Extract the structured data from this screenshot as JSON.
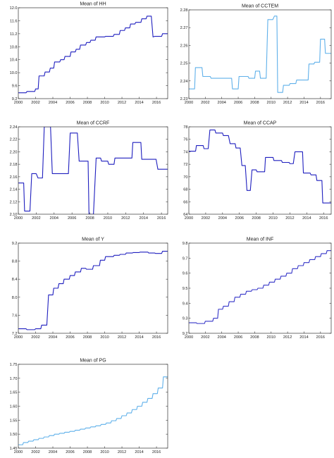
{
  "chart_data": [
    {
      "type": "line",
      "title": "Mean of HH",
      "color": "#1f1fbf",
      "ylim": [
        9.2,
        12.0
      ],
      "xlim": [
        2000,
        2017.3
      ],
      "yticks": [
        "9.2",
        "9.6",
        "10.0",
        "10.4",
        "10.8",
        "11.2",
        "11.6",
        "12.0"
      ],
      "xticks": [
        "2000",
        "2002",
        "2004",
        "2006",
        "2008",
        "2010",
        "2012",
        "2014",
        "2016"
      ],
      "x": [
        2000.0,
        2000.9,
        2001.0,
        2001.9,
        2002.0,
        2002.3,
        2002.4,
        2003.0,
        2003.1,
        2003.6,
        2003.7,
        2004.1,
        2004.2,
        2004.8,
        2004.9,
        2005.3,
        2005.4,
        2006.0,
        2006.1,
        2006.6,
        2006.7,
        2007.1,
        2007.2,
        2007.8,
        2007.9,
        2008.3,
        2008.4,
        2008.9,
        2009.0,
        2010.0,
        2010.1,
        2011.0,
        2011.1,
        2011.7,
        2011.8,
        2012.3,
        2012.4,
        2012.9,
        2013.0,
        2013.5,
        2013.6,
        2014.2,
        2014.3,
        2014.8,
        2014.9,
        2015.4,
        2015.6,
        2015.8,
        2016.6,
        2016.7,
        2017.3
      ],
      "y": [
        9.38,
        9.38,
        9.42,
        9.42,
        9.5,
        9.5,
        9.9,
        9.9,
        10.02,
        10.02,
        10.14,
        10.14,
        10.33,
        10.33,
        10.4,
        10.4,
        10.5,
        10.5,
        10.64,
        10.64,
        10.72,
        10.72,
        10.85,
        10.85,
        10.93,
        10.93,
        11.0,
        11.0,
        11.1,
        11.1,
        11.12,
        11.12,
        11.18,
        11.18,
        11.3,
        11.3,
        11.38,
        11.38,
        11.5,
        11.5,
        11.55,
        11.55,
        11.66,
        11.66,
        11.74,
        11.74,
        11.1,
        11.12,
        11.12,
        11.2,
        11.2
      ]
    },
    {
      "type": "line",
      "title": "Mean of CCTEM",
      "color": "#5fb0ea",
      "ylim": [
        2.23,
        2.28
      ],
      "xlim": [
        2000,
        2017.3
      ],
      "yticks": [
        "2.23",
        "2.24",
        "2.25",
        "2.26",
        "2.27",
        "2.28"
      ],
      "xticks": [
        "2000",
        "2002",
        "2004",
        "2006",
        "2008",
        "2010",
        "2012",
        "2014",
        "2016"
      ],
      "x": [
        2000.0,
        2000.7,
        2000.8,
        2001.6,
        2001.7,
        2002.6,
        2002.7,
        2005.2,
        2005.3,
        2006.0,
        2006.1,
        2007.2,
        2007.3,
        2008.0,
        2008.1,
        2008.6,
        2008.7,
        2009.4,
        2009.6,
        2010.2,
        2010.4,
        2010.7,
        2010.8,
        2011.4,
        2011.5,
        2012.2,
        2012.3,
        2013.0,
        2013.1,
        2014.5,
        2014.6,
        2015.2,
        2015.3,
        2015.9,
        2016.0,
        2016.5,
        2016.6,
        2017.3
      ],
      "y": [
        2.2355,
        2.2355,
        2.2475,
        2.2475,
        2.2425,
        2.2425,
        2.2415,
        2.2415,
        2.2355,
        2.2355,
        2.2425,
        2.2425,
        2.2415,
        2.2415,
        2.2455,
        2.2455,
        2.2415,
        2.2415,
        2.2745,
        2.2745,
        2.2765,
        2.2765,
        2.2335,
        2.2335,
        2.2375,
        2.2375,
        2.2385,
        2.2385,
        2.2405,
        2.2405,
        2.2495,
        2.2495,
        2.2505,
        2.2505,
        2.2635,
        2.2635,
        2.2555,
        2.2555
      ]
    },
    {
      "type": "line",
      "title": "Mean of CCRF",
      "color": "#1f1fbf",
      "ylim": [
        2.1,
        2.24
      ],
      "xlim": [
        2000,
        2016.7
      ],
      "yticks": [
        "2.10",
        "2.12",
        "2.14",
        "2.16",
        "2.18",
        "2.20",
        "2.22",
        "2.24"
      ],
      "xticks": [
        "2000",
        "2002",
        "2004",
        "2006",
        "2008",
        "2010",
        "2012",
        "2014",
        "2016"
      ],
      "x": [
        2000.0,
        2000.6,
        2000.7,
        2001.3,
        2001.5,
        2002.0,
        2002.2,
        2002.7,
        2002.9,
        2003.6,
        2003.8,
        2005.6,
        2005.8,
        2006.6,
        2006.8,
        2007.8,
        2007.9,
        2008.4,
        2008.7,
        2009.2,
        2009.3,
        2010.0,
        2010.1,
        2010.7,
        2010.8,
        2012.7,
        2012.8,
        2013.7,
        2013.8,
        2015.4,
        2015.6,
        2016.7
      ],
      "y": [
        2.15,
        2.15,
        2.105,
        2.105,
        2.165,
        2.165,
        2.158,
        2.158,
        2.24,
        2.24,
        2.165,
        2.165,
        2.23,
        2.23,
        2.185,
        2.185,
        2.1,
        2.1,
        2.19,
        2.19,
        2.185,
        2.185,
        2.18,
        2.18,
        2.19,
        2.19,
        2.215,
        2.215,
        2.188,
        2.188,
        2.172,
        2.172
      ]
    },
    {
      "type": "line",
      "title": "Mean of CCAP",
      "color": "#1f1fbf",
      "ylim": [
        64,
        78
      ],
      "xlim": [
        2000,
        2016.9
      ],
      "yticks": [
        "64",
        "66",
        "68",
        "70",
        "72",
        "74",
        "76",
        "78"
      ],
      "xticks": [
        "2000",
        "2002",
        "2004",
        "2006",
        "2008",
        "2010",
        "2012",
        "2014",
        "2016"
      ],
      "x": [
        2000.0,
        2000.8,
        2000.9,
        2001.7,
        2001.8,
        2002.3,
        2002.5,
        2003.1,
        2003.2,
        2004.0,
        2004.1,
        2004.7,
        2004.9,
        2005.5,
        2005.6,
        2006.1,
        2006.3,
        2006.7,
        2006.9,
        2007.3,
        2007.5,
        2008.0,
        2008.1,
        2009.0,
        2009.1,
        2010.0,
        2010.1,
        2011.0,
        2011.1,
        2011.9,
        2012.0,
        2012.4,
        2012.6,
        2013.5,
        2013.6,
        2014.4,
        2014.5,
        2015.1,
        2015.2,
        2015.8,
        2015.9,
        2016.9
      ],
      "y": [
        74.1,
        74.1,
        75.0,
        75.0,
        74.5,
        74.5,
        77.5,
        77.5,
        77.0,
        77.0,
        76.6,
        76.6,
        75.3,
        75.3,
        74.6,
        74.6,
        71.8,
        71.8,
        67.8,
        67.8,
        71.1,
        71.1,
        70.8,
        70.8,
        73.1,
        73.1,
        72.6,
        72.6,
        72.3,
        72.3,
        72.1,
        72.1,
        74.0,
        74.0,
        70.6,
        70.6,
        70.3,
        70.3,
        69.4,
        69.4,
        65.8,
        65.8
      ]
    },
    {
      "type": "line",
      "title": "Mean of Y",
      "color": "#1f1fbf",
      "ylim": [
        7.2,
        9.2
      ],
      "xlim": [
        2000,
        2017.3
      ],
      "yticks": [
        "7.2",
        "7.6",
        "8.0",
        "8.4",
        "8.8",
        "9.2"
      ],
      "xticks": [
        "2000",
        "2002",
        "2004",
        "2006",
        "2008",
        "2010",
        "2012",
        "2014",
        "2016"
      ],
      "x": [
        2000.0,
        2000.9,
        2001.0,
        2001.9,
        2002.0,
        2002.6,
        2002.7,
        2003.3,
        2003.5,
        2004.0,
        2004.1,
        2004.6,
        2004.7,
        2005.2,
        2005.3,
        2005.9,
        2006.0,
        2006.5,
        2006.6,
        2007.2,
        2007.3,
        2007.8,
        2007.9,
        2008.6,
        2008.7,
        2009.4,
        2009.5,
        2010.0,
        2010.1,
        2011.0,
        2011.1,
        2011.7,
        2011.8,
        2012.4,
        2012.5,
        2013.2,
        2013.3,
        2014.0,
        2014.1,
        2015.0,
        2015.1,
        2015.8,
        2015.9,
        2016.6,
        2016.7,
        2017.3
      ],
      "y": [
        7.3,
        7.3,
        7.28,
        7.28,
        7.3,
        7.3,
        7.38,
        7.38,
        8.05,
        8.05,
        8.2,
        8.2,
        8.3,
        8.3,
        8.4,
        8.4,
        8.48,
        8.48,
        8.56,
        8.56,
        8.64,
        8.64,
        8.62,
        8.62,
        8.7,
        8.7,
        8.82,
        8.82,
        8.9,
        8.9,
        8.93,
        8.93,
        8.95,
        8.95,
        8.98,
        8.98,
        8.99,
        8.99,
        9.0,
        9.0,
        8.98,
        8.98,
        8.97,
        8.97,
        9.02,
        9.02
      ]
    },
    {
      "type": "line",
      "title": "Mean of INF",
      "color": "#3434c8",
      "ylim": [
        9.2,
        9.8
      ],
      "xlim": [
        2000,
        2017.3
      ],
      "yticks": [
        "9.2",
        "9.3",
        "9.4",
        "9.5",
        "9.6",
        "9.7",
        "9.8"
      ],
      "xticks": [
        "2000",
        "2002",
        "2004",
        "2006",
        "2008",
        "2010",
        "2012",
        "2014",
        "2016"
      ],
      "x": [
        2000.0,
        2000.9,
        2001.0,
        2001.9,
        2002.0,
        2002.9,
        2003.0,
        2003.5,
        2003.6,
        2004.1,
        2004.2,
        2004.8,
        2004.9,
        2005.5,
        2005.6,
        2006.2,
        2006.3,
        2006.9,
        2007.0,
        2007.6,
        2007.7,
        2008.3,
        2008.4,
        2009.0,
        2009.1,
        2009.7,
        2009.8,
        2010.4,
        2010.5,
        2011.1,
        2011.2,
        2011.8,
        2011.9,
        2012.5,
        2012.6,
        2013.2,
        2013.3,
        2013.9,
        2014.0,
        2014.6,
        2014.7,
        2015.3,
        2015.4,
        2016.0,
        2016.1,
        2016.7,
        2016.8,
        2017.3
      ],
      "y": [
        9.27,
        9.27,
        9.265,
        9.265,
        9.28,
        9.28,
        9.3,
        9.3,
        9.36,
        9.36,
        9.38,
        9.38,
        9.41,
        9.41,
        9.44,
        9.44,
        9.46,
        9.46,
        9.48,
        9.48,
        9.49,
        9.49,
        9.5,
        9.5,
        9.52,
        9.52,
        9.54,
        9.54,
        9.56,
        9.56,
        9.58,
        9.58,
        9.6,
        9.6,
        9.63,
        9.63,
        9.65,
        9.65,
        9.67,
        9.67,
        9.69,
        9.69,
        9.71,
        9.71,
        9.73,
        9.73,
        9.75,
        9.75
      ]
    },
    {
      "type": "line",
      "title": "Mean of PG",
      "color": "#5fb0ea",
      "ylim": [
        1.45,
        1.75
      ],
      "xlim": [
        2000,
        2017.3
      ],
      "yticks": [
        "1.45",
        "1.50",
        "1.55",
        "1.60",
        "1.65",
        "1.70",
        "1.75"
      ],
      "xticks": [
        "2000",
        "2002",
        "2004",
        "2006",
        "2008",
        "2010",
        "2012",
        "2014",
        "2016"
      ],
      "x": [
        2000.0,
        2000.5,
        2000.6,
        2001.1,
        2001.2,
        2001.7,
        2001.8,
        2002.3,
        2002.4,
        2002.9,
        2003.0,
        2003.5,
        2003.6,
        2004.1,
        2004.2,
        2004.7,
        2004.8,
        2005.3,
        2005.4,
        2005.9,
        2006.0,
        2006.5,
        2006.6,
        2007.1,
        2007.2,
        2007.7,
        2007.8,
        2008.3,
        2008.4,
        2008.9,
        2009.0,
        2009.5,
        2009.6,
        2010.1,
        2010.2,
        2010.7,
        2010.8,
        2011.3,
        2011.4,
        2011.9,
        2012.0,
        2012.5,
        2012.6,
        2013.1,
        2013.2,
        2013.7,
        2013.8,
        2014.3,
        2014.4,
        2014.9,
        2015.0,
        2015.5,
        2015.6,
        2016.1,
        2016.2,
        2016.7,
        2016.8,
        2017.3
      ],
      "y": [
        1.462,
        1.462,
        1.47,
        1.47,
        1.475,
        1.475,
        1.48,
        1.48,
        1.485,
        1.485,
        1.49,
        1.49,
        1.495,
        1.495,
        1.5,
        1.5,
        1.503,
        1.503,
        1.507,
        1.507,
        1.51,
        1.51,
        1.514,
        1.514,
        1.518,
        1.518,
        1.522,
        1.522,
        1.526,
        1.526,
        1.53,
        1.53,
        1.535,
        1.535,
        1.54,
        1.54,
        1.548,
        1.548,
        1.556,
        1.556,
        1.566,
        1.566,
        1.576,
        1.576,
        1.588,
        1.588,
        1.6,
        1.6,
        1.614,
        1.614,
        1.628,
        1.628,
        1.645,
        1.645,
        1.665,
        1.665,
        1.705,
        1.705
      ]
    }
  ]
}
